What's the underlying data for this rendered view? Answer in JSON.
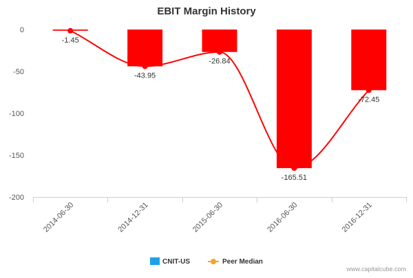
{
  "chart_data": {
    "type": "bar",
    "title": "EBIT Margin History",
    "categories": [
      "2014-06-30",
      "2014-12-31",
      "2015-06-30",
      "2016-06-30",
      "2016-12-31"
    ],
    "series": [
      {
        "name": "CNIT-US",
        "kind": "bar",
        "color": "#ff0000",
        "values": [
          -1.45,
          -43.95,
          -26.84,
          -165.51,
          -72.45
        ]
      },
      {
        "name": "Peer Median",
        "kind": "line",
        "color": "#ff0000",
        "values": [
          -1.45,
          -43.95,
          -26.84,
          -165.51,
          -72.45
        ]
      }
    ],
    "data_labels": [
      "-1.45",
      "-43.95",
      "-26.84",
      "-165.51",
      "-72.45"
    ],
    "yticks": [
      0,
      -50,
      -100,
      -150,
      -200
    ],
    "ylim": [
      -200,
      0
    ],
    "xlabel": "",
    "ylabel": "",
    "grid": false,
    "legend_position": "bottom",
    "legend_colors": {
      "CNIT-US": "#1aa3e8",
      "Peer Median": "#f5a623"
    }
  },
  "credit": "www.capitalcube.com"
}
